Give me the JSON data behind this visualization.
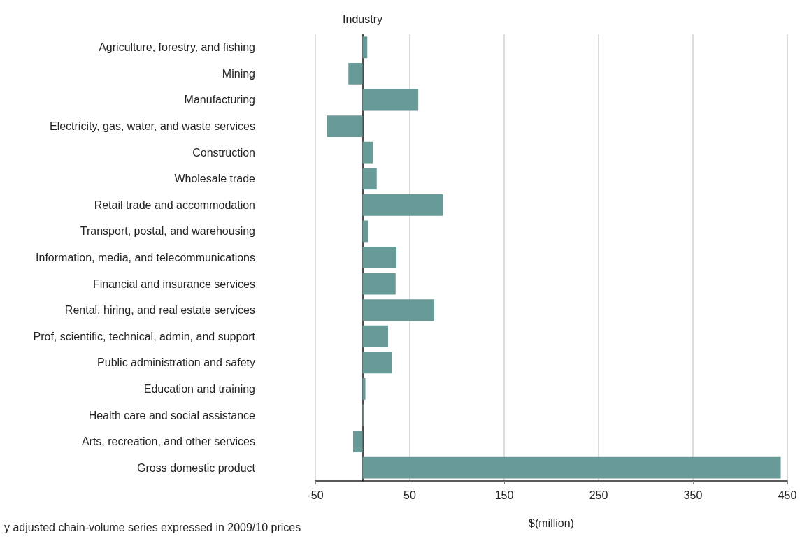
{
  "chart_data": {
    "type": "bar",
    "orientation": "horizontal",
    "ylabel": "Industry",
    "xlabel": "$(million)",
    "categories": [
      "Agriculture, forestry, and fishing",
      "Mining",
      "Manufacturing",
      "Electricity, gas, water, and waste services",
      "Construction",
      "Wholesale trade",
      "Retail trade and accommodation",
      "Transport, postal, and warehousing",
      "Information, media, and telecommunications",
      "Financial and insurance services",
      "Rental, hiring, and real estate services",
      "Prof, scientific, technical, admin, and support",
      "Public administration and safety",
      "Education and training",
      "Health care and social assistance",
      "Arts, recreation, and other services",
      "Gross domestic product"
    ],
    "values": [
      5,
      -15,
      59,
      -38,
      11,
      15,
      85,
      6,
      36,
      35,
      76,
      27,
      31,
      3,
      1,
      -10,
      443
    ],
    "color": "#689a98",
    "xlim": [
      -50,
      450
    ],
    "xticks": [
      -50,
      50,
      150,
      250,
      350,
      450
    ],
    "grid": "x",
    "annotations": [
      "y adjusted chain-volume series expressed in 2009/10 prices"
    ]
  }
}
